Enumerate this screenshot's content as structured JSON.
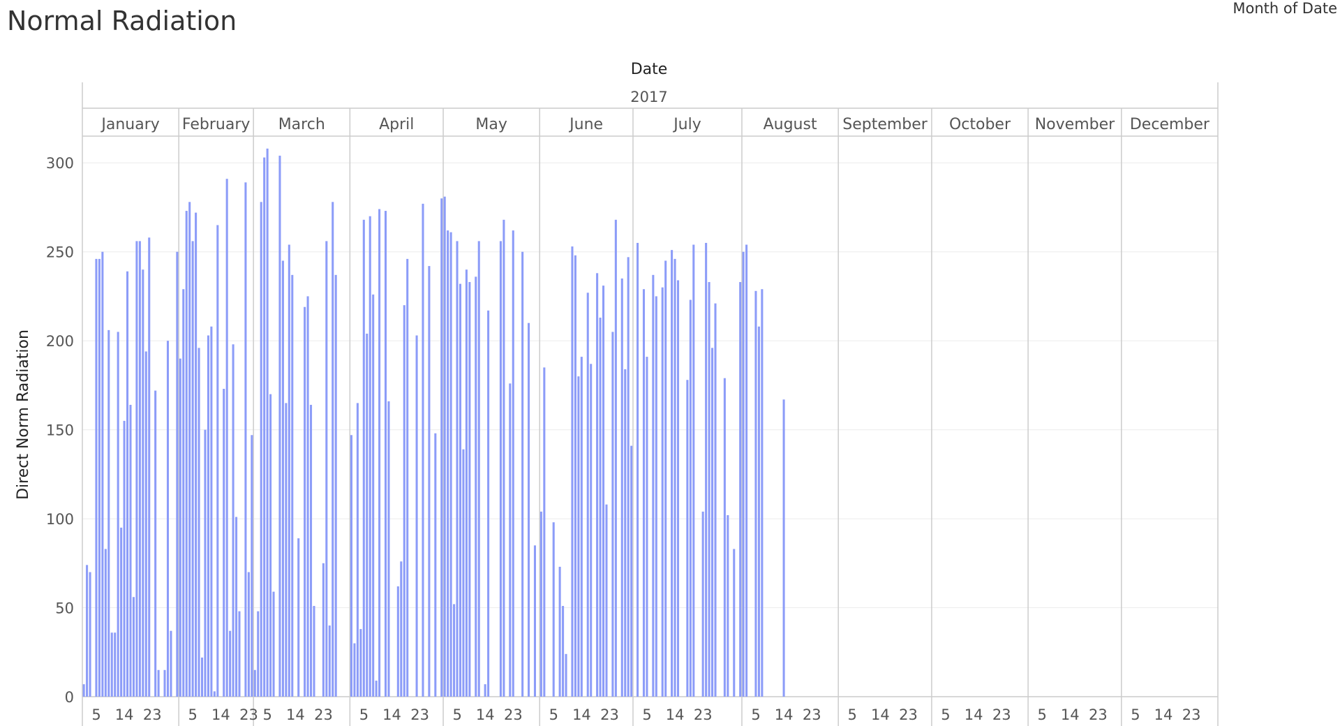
{
  "page_title": "Normal Radiation",
  "legend_label": "Month of Date",
  "chart_data": {
    "type": "bar",
    "title": "Normal Radiation",
    "header_label": "Date",
    "year": "2017",
    "ylabel": "Direct Norm Radiation",
    "ylim": [
      0,
      300
    ],
    "yticks": [
      0,
      50,
      100,
      150,
      200,
      250,
      300
    ],
    "xticks": [
      "5",
      "14",
      "23"
    ],
    "bar_color": "#8c9cf8",
    "grid": true,
    "months": [
      {
        "name": "January",
        "values": [
          7,
          74,
          70,
          0,
          246,
          246,
          250,
          83,
          206,
          36,
          36,
          205,
          95,
          155,
          239,
          164,
          56,
          256,
          256,
          240,
          194,
          258,
          0,
          172,
          15,
          0,
          15,
          200,
          37,
          0,
          250
        ]
      },
      {
        "name": "February",
        "values": [
          190,
          229,
          273,
          278,
          256,
          272,
          196,
          22,
          150,
          203,
          208,
          3,
          265,
          0,
          173,
          291,
          37,
          198,
          101,
          48,
          0,
          289,
          70,
          147
        ]
      },
      {
        "name": "March",
        "values": [
          15,
          48,
          278,
          303,
          308,
          170,
          59,
          0,
          304,
          245,
          165,
          254,
          237,
          0,
          89,
          0,
          219,
          225,
          164,
          51,
          0,
          0,
          75,
          256,
          40,
          278,
          237,
          0,
          0,
          0,
          0
        ]
      },
      {
        "name": "April",
        "values": [
          147,
          30,
          165,
          38,
          268,
          204,
          270,
          226,
          9,
          274,
          0,
          273,
          166,
          0,
          0,
          62,
          76,
          220,
          246,
          0,
          0,
          203,
          0,
          277,
          0,
          242,
          0,
          148,
          0,
          280
        ]
      },
      {
        "name": "May",
        "values": [
          281,
          262,
          261,
          52,
          256,
          232,
          139,
          240,
          233,
          0,
          236,
          256,
          0,
          7,
          217,
          0,
          0,
          0,
          256,
          268,
          0,
          176,
          262,
          0,
          0,
          250,
          0,
          210,
          0,
          85,
          0
        ]
      },
      {
        "name": "June",
        "values": [
          104,
          185,
          0,
          0,
          98,
          0,
          73,
          51,
          24,
          0,
          253,
          248,
          180,
          191,
          0,
          227,
          187,
          0,
          238,
          213,
          231,
          108,
          0,
          205,
          268,
          0,
          235,
          184,
          247,
          141
        ]
      },
      {
        "name": "July",
        "values": [
          0,
          255,
          0,
          229,
          191,
          0,
          237,
          225,
          0,
          230,
          245,
          0,
          251,
          246,
          234,
          0,
          0,
          178,
          223,
          254,
          0,
          0,
          104,
          255,
          233,
          196,
          221,
          0,
          0,
          179,
          102,
          0,
          83,
          0,
          233
        ]
      },
      {
        "name": "August",
        "values": [
          250,
          254,
          0,
          0,
          228,
          208,
          229,
          0,
          0,
          0,
          0,
          0,
          0,
          167,
          0,
          0,
          0,
          0,
          0,
          0,
          0,
          0,
          0,
          0,
          0,
          0,
          0,
          0,
          0,
          0,
          0
        ]
      },
      {
        "name": "September",
        "values": [
          0,
          0,
          0,
          0,
          0,
          0,
          0,
          0,
          0,
          0,
          0,
          0,
          0,
          0,
          0,
          0,
          0,
          0,
          0,
          0,
          0,
          0,
          0,
          0,
          0,
          0,
          0,
          0,
          0,
          0
        ]
      },
      {
        "name": "October",
        "values": [
          0,
          0,
          0,
          0,
          0,
          0,
          0,
          0,
          0,
          0,
          0,
          0,
          0,
          0,
          0,
          0,
          0,
          0,
          0,
          0,
          0,
          0,
          0,
          0,
          0,
          0,
          0,
          0,
          0,
          0,
          0
        ]
      },
      {
        "name": "November",
        "values": [
          0,
          0,
          0,
          0,
          0,
          0,
          0,
          0,
          0,
          0,
          0,
          0,
          0,
          0,
          0,
          0,
          0,
          0,
          0,
          0,
          0,
          0,
          0,
          0,
          0,
          0,
          0,
          0,
          0,
          0
        ]
      },
      {
        "name": "December",
        "values": [
          0,
          0,
          0,
          0,
          0,
          0,
          0,
          0,
          0,
          0,
          0,
          0,
          0,
          0,
          0,
          0,
          0,
          0,
          0,
          0,
          0,
          0,
          0,
          0,
          0,
          0,
          0,
          0,
          0,
          0,
          0
        ]
      }
    ]
  }
}
